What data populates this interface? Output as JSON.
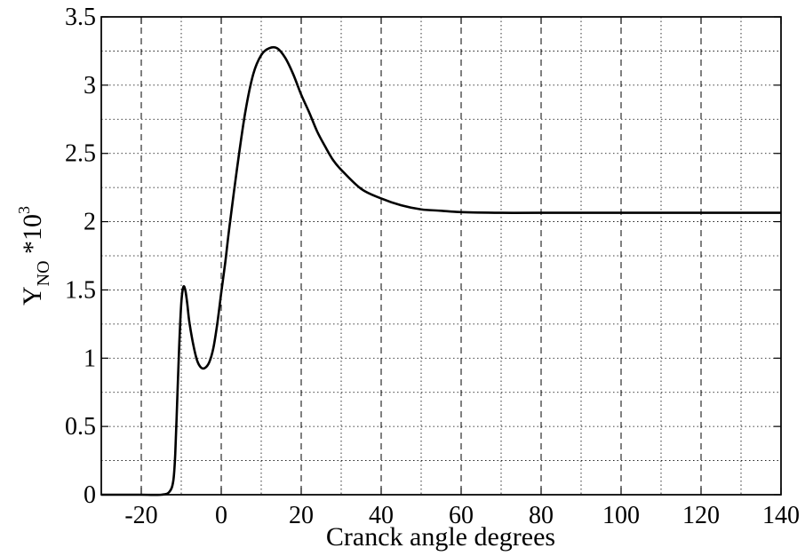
{
  "chart_data": {
    "type": "line",
    "title": "",
    "xlabel": "Cranck angle degrees",
    "ylabel": {
      "base": "Y",
      "subscript": "NO",
      "suffix": " *10",
      "superscript": "3"
    },
    "xlim": [
      -30,
      140
    ],
    "ylim": [
      0,
      3.5
    ],
    "x_ticks": [
      -20,
      0,
      20,
      40,
      60,
      80,
      100,
      120,
      140
    ],
    "x_tick_labels": [
      "-20",
      "0",
      "20",
      "40",
      "60",
      "80",
      "100",
      "120",
      "140"
    ],
    "y_ticks": [
      0,
      0.5,
      1,
      1.5,
      2,
      2.5,
      3,
      3.5
    ],
    "y_tick_labels": [
      "0",
      "0.5",
      "1",
      "1.5",
      "2",
      "2.5",
      "3",
      "3.5"
    ],
    "grid": {
      "major_x": "dashed",
      "minor_x": "dotted",
      "y": "dotted"
    },
    "line_color": "#000000",
    "series": [
      {
        "x": [
          -30,
          -20,
          -15,
          -13,
          -12,
          -11.5,
          -11,
          -10.5,
          -10,
          -9.5,
          -9,
          -8.5,
          -8,
          -7,
          -6,
          -5,
          -4,
          -3,
          -2,
          -1,
          0,
          1,
          2,
          4,
          6,
          8,
          10,
          12,
          14,
          16,
          18,
          20,
          22,
          24,
          26,
          28,
          30,
          35,
          40,
          45,
          50,
          55,
          60,
          70,
          80,
          100,
          120,
          140
        ],
        "y": [
          0,
          0,
          0,
          0.02,
          0.1,
          0.3,
          0.7,
          1.1,
          1.4,
          1.52,
          1.5,
          1.4,
          1.27,
          1.1,
          0.98,
          0.93,
          0.93,
          0.97,
          1.07,
          1.25,
          1.48,
          1.7,
          1.95,
          2.4,
          2.8,
          3.08,
          3.22,
          3.27,
          3.27,
          3.2,
          3.08,
          2.93,
          2.8,
          2.66,
          2.55,
          2.45,
          2.38,
          2.24,
          2.17,
          2.12,
          2.09,
          2.08,
          2.07,
          2.065,
          2.065,
          2.065,
          2.065,
          2.065
        ]
      }
    ]
  }
}
